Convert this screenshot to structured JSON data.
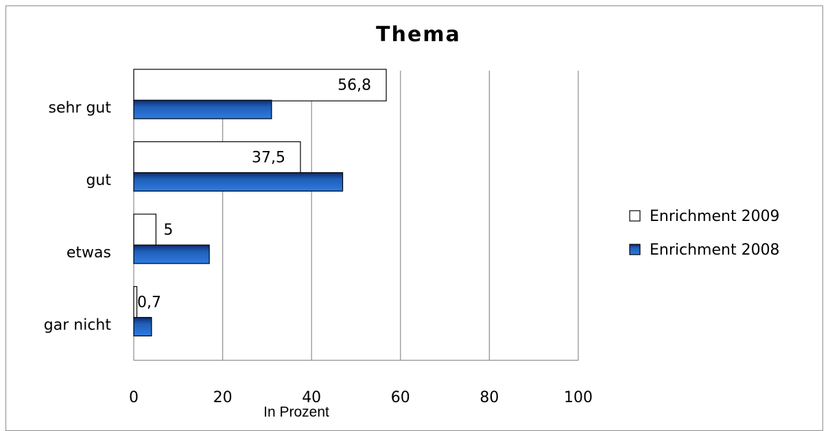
{
  "chart_data": {
    "type": "bar",
    "orientation": "horizontal",
    "title": "Thema",
    "xlabel": "In Prozent",
    "ylabel": "",
    "categories": [
      "sehr gut",
      "gut",
      "etwas",
      "gar nicht"
    ],
    "series": [
      {
        "name": "Enrichment 2009",
        "values": [
          56.8,
          37.5,
          5,
          0.7
        ],
        "data_labels": [
          "56,8",
          "37,5",
          "5",
          "0,7"
        ],
        "color": "#ffffff"
      },
      {
        "name": "Enrichment 2008",
        "values": [
          31,
          47,
          17,
          4
        ],
        "color": "#1f5fb8"
      }
    ],
    "xlim": [
      0,
      100
    ],
    "xticks": [
      0,
      20,
      40,
      60,
      80,
      100
    ],
    "grid": true,
    "legend_position": "right"
  }
}
